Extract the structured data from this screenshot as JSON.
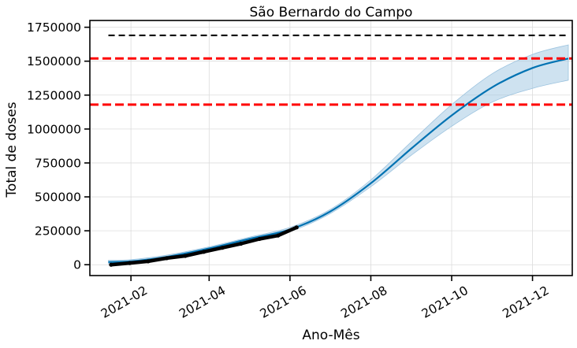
{
  "chart_data": {
    "type": "line",
    "title": "São Bernardo do Campo",
    "xlabel": "Ano-Mês",
    "ylabel": "Total de doses",
    "x_ticks": [
      "2021-02",
      "2021-04",
      "2021-06",
      "2021-08",
      "2021-10",
      "2021-12"
    ],
    "y_ticks": [
      0,
      250000,
      500000,
      750000,
      1000000,
      1250000,
      1500000,
      1750000
    ],
    "xlim": [
      "2021-01-01",
      "2021-12-31"
    ],
    "ylim": [
      -80000,
      1800000
    ],
    "grid": true,
    "legend": "none",
    "colors": {
      "forecast": "#0072B2",
      "interval": "#a6cbe3",
      "observed": "#000000",
      "reference": "#ff0000",
      "cap": "#000000"
    },
    "series": [
      {
        "role": "observed",
        "x": [
          "2021-01-17",
          "2021-01-31",
          "2021-02-14",
          "2021-02-28",
          "2021-03-14",
          "2021-03-28",
          "2021-04-11",
          "2021-04-25",
          "2021-05-09",
          "2021-05-23",
          "2021-06-06"
        ],
        "values": [
          0,
          12000,
          25000,
          48000,
          65000,
          95000,
          125000,
          155000,
          190000,
          215000,
          275000
        ]
      },
      {
        "role": "forecast",
        "x": [
          "2021-01-15",
          "2021-02-01",
          "2021-03-01",
          "2021-04-01",
          "2021-05-01",
          "2021-06-01",
          "2021-07-01",
          "2021-08-01",
          "2021-09-01",
          "2021-10-01",
          "2021-11-01",
          "2021-12-01",
          "2021-12-28"
        ],
        "values": [
          20000,
          25000,
          60000,
          120000,
          190000,
          260000,
          390000,
          600000,
          860000,
          1100000,
          1310000,
          1450000,
          1520000
        ]
      },
      {
        "role": "interval_upper",
        "x": [
          "2021-01-15",
          "2021-02-01",
          "2021-03-01",
          "2021-04-01",
          "2021-05-01",
          "2021-06-01",
          "2021-07-01",
          "2021-08-01",
          "2021-09-01",
          "2021-10-01",
          "2021-11-01",
          "2021-12-01",
          "2021-12-28"
        ],
        "values": [
          32000,
          37000,
          72000,
          132000,
          202000,
          275000,
          405000,
          625000,
          910000,
          1180000,
          1410000,
          1550000,
          1620000
        ]
      },
      {
        "role": "interval_lower",
        "x": [
          "2021-01-15",
          "2021-02-01",
          "2021-03-01",
          "2021-04-01",
          "2021-05-01",
          "2021-06-01",
          "2021-07-01",
          "2021-08-01",
          "2021-09-01",
          "2021-10-01",
          "2021-11-01",
          "2021-12-01",
          "2021-12-28"
        ],
        "values": [
          8000,
          13000,
          48000,
          108000,
          178000,
          245000,
          375000,
          575000,
          810000,
          1020000,
          1200000,
          1300000,
          1360000
        ]
      }
    ],
    "reference_lines": [
      {
        "role": "cap",
        "style": "dashed",
        "value": 1690000,
        "x_start": "2021-01-15",
        "x_end": "2021-12-28"
      },
      {
        "role": "target",
        "style": "dashed",
        "value": 1520000
      },
      {
        "role": "target",
        "style": "dashed",
        "value": 1180000
      }
    ]
  }
}
